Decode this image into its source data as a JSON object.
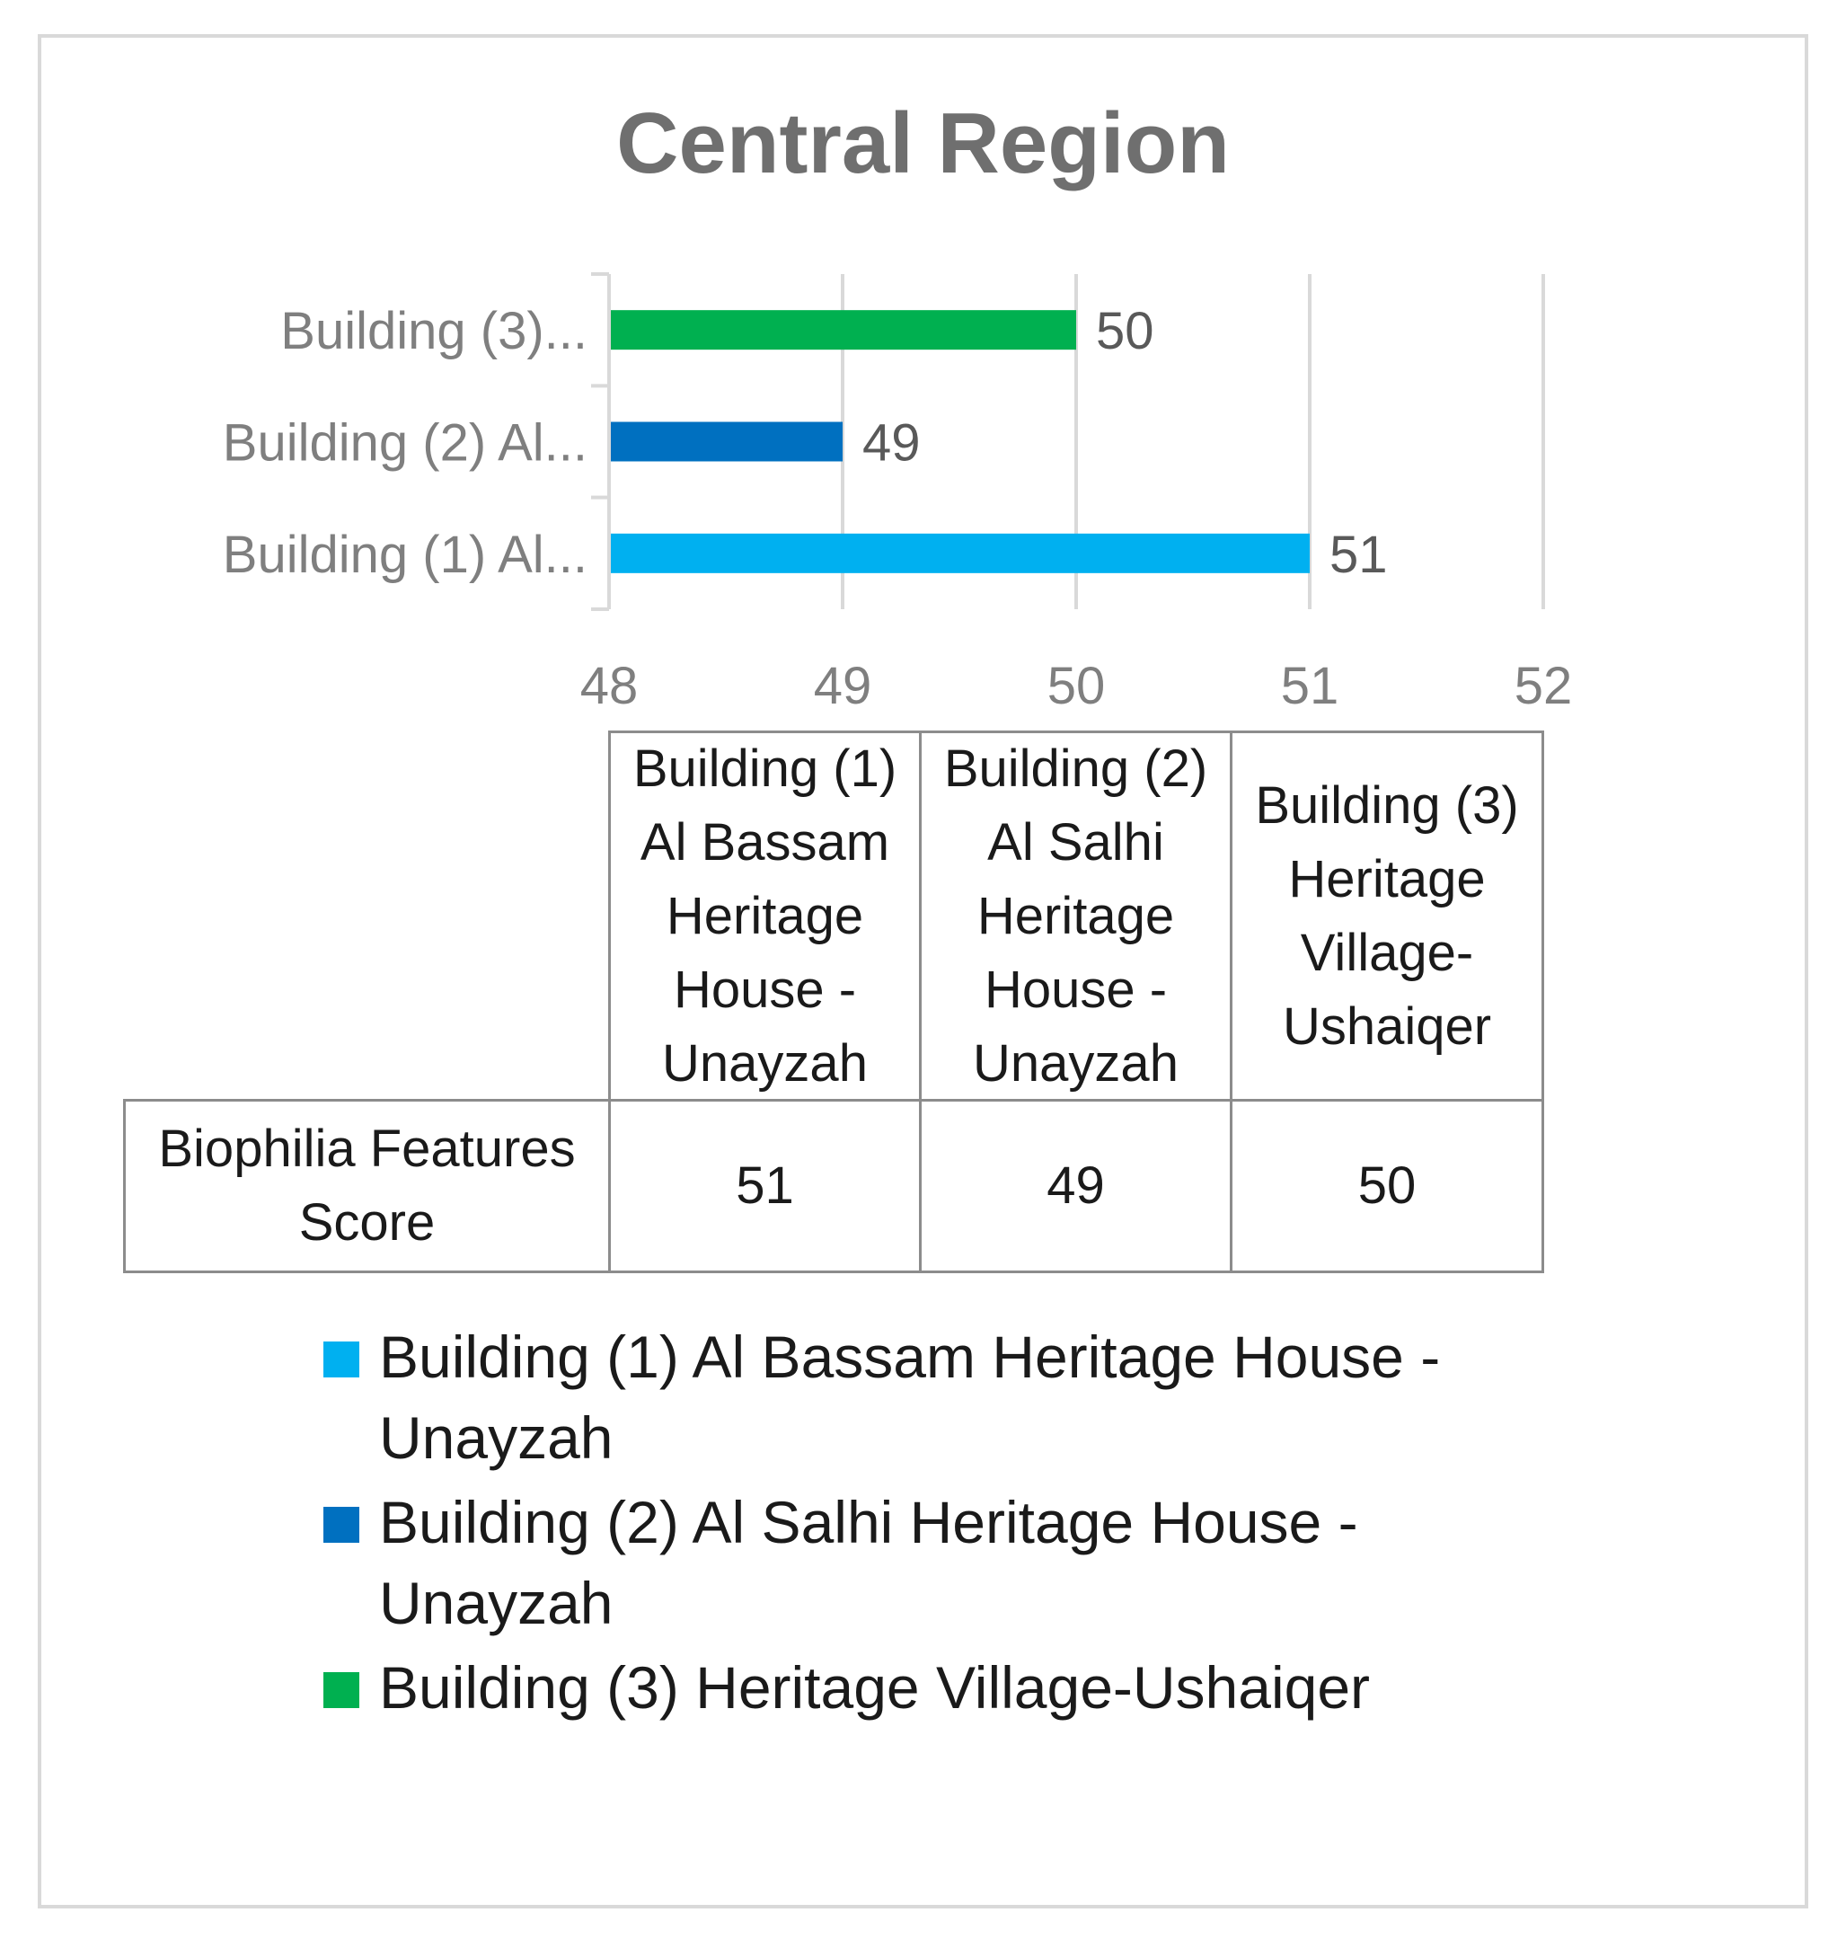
{
  "colors": {
    "building_1": "#00b0f0",
    "building_2": "#0070c0",
    "building_3": "#00b050",
    "grid": "#d9d9d9",
    "axis": "#d9d9d9"
  },
  "chart_data": {
    "type": "bar",
    "orientation": "horizontal",
    "title": "Central Region",
    "categories": [
      "Building (1) Al Bassam Heritage House - Unayzah",
      "Building (2) Al Salhi Heritage House - Unayzah",
      "Building (3) Heritage Village-Ushaiqer"
    ],
    "category_tick_labels": [
      "Building (1) Al...",
      "Building (2) Al...",
      "Building (3)..."
    ],
    "values": [
      51,
      49,
      50
    ],
    "data_labels": [
      "51",
      "49",
      "50"
    ],
    "xlim": [
      48,
      52
    ],
    "xticks": [
      "48",
      "49",
      "50",
      "51",
      "52"
    ],
    "grid": true,
    "legend": "bottom",
    "data_table": {
      "headers": [
        "Building (1) Al Bassam Heritage House - Unayzah",
        "Building (2) Al Salhi Heritage House - Unayzah",
        "Building (3) Heritage Village-Ushaiqer"
      ],
      "row_label": "Biophilia Features Score",
      "values": [
        "51",
        "49",
        "50"
      ]
    }
  },
  "legend": {
    "items": [
      "Building (1) Al Bassam Heritage House - Unayzah",
      "Building (2) Al Salhi Heritage House - Unayzah",
      "Building (3) Heritage Village-Ushaiqer"
    ]
  }
}
